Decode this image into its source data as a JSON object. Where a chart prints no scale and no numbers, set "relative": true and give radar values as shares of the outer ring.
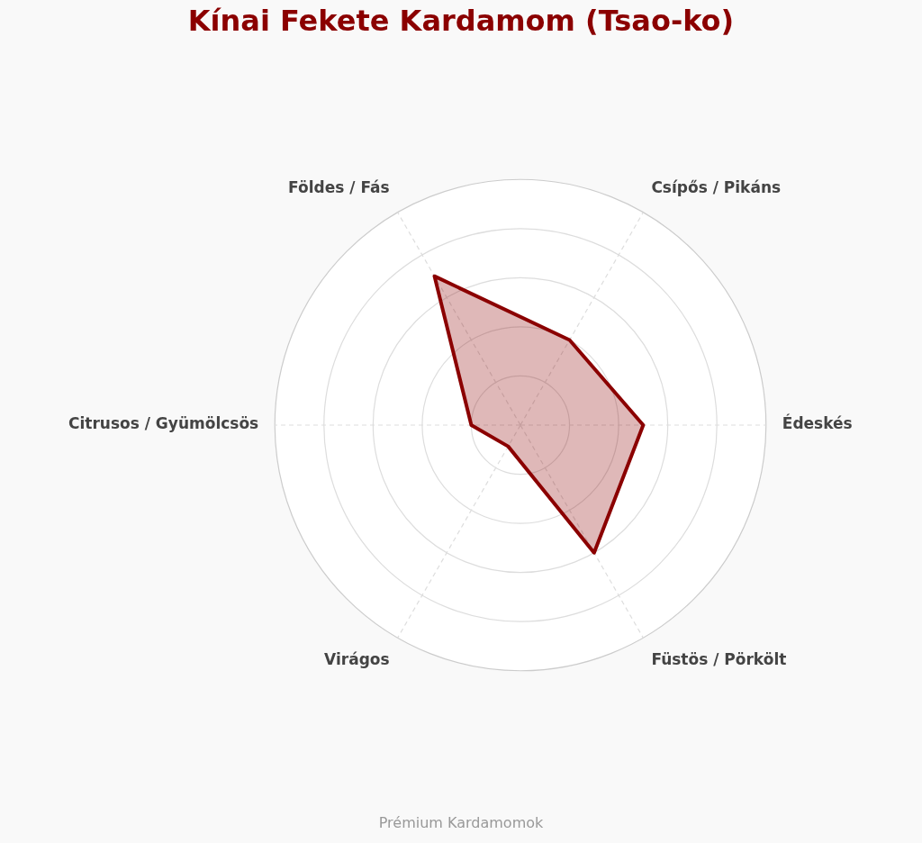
{
  "chart_data": {
    "type": "radar",
    "title": "Kínai Fekete Kardamom (Tsao-ko)",
    "categories": [
      "Csípős / Pikáns",
      "Édeskés",
      "Füstös / Pörkölt",
      "Virágos",
      "Citrusos / Gyümölcsös",
      "Földes / Fás"
    ],
    "series": [
      {
        "color": "#8b0000",
        "values": [
          0.4,
          0.5,
          0.6,
          0.1,
          0.2,
          0.7
        ]
      }
    ],
    "relative": true,
    "grid": true,
    "legend": false,
    "marker": "none",
    "annotations": [
      "Prémium Kardamomok"
    ]
  }
}
